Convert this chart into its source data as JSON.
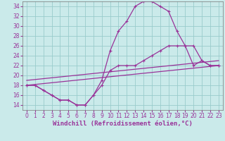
{
  "background_color": "#caeaea",
  "grid_color": "#99cccc",
  "line_color": "#993399",
  "xlim": [
    -0.5,
    23.5
  ],
  "ylim": [
    13,
    35
  ],
  "xticks": [
    0,
    1,
    2,
    3,
    4,
    5,
    6,
    7,
    8,
    9,
    10,
    11,
    12,
    13,
    14,
    15,
    16,
    17,
    18,
    19,
    20,
    21,
    22,
    23
  ],
  "yticks": [
    14,
    16,
    18,
    20,
    22,
    24,
    26,
    28,
    30,
    32,
    34
  ],
  "xlabel": "Windchill (Refroidissement éolien,°C)",
  "series": [
    {
      "x": [
        0,
        1,
        2,
        3,
        4,
        5,
        6,
        7,
        8,
        9,
        10,
        11,
        12,
        13,
        14,
        15,
        16,
        17,
        18,
        19,
        20,
        21,
        22,
        23
      ],
      "y": [
        18,
        18,
        17,
        16,
        15,
        15,
        14,
        14,
        16,
        19,
        25,
        29,
        31,
        34,
        35,
        35,
        34,
        33,
        29,
        26,
        22,
        23,
        22,
        22
      ]
    },
    {
      "x": [
        0,
        1,
        2,
        3,
        4,
        5,
        6,
        7,
        8,
        9,
        10,
        11,
        12,
        13,
        14,
        15,
        16,
        17,
        18,
        19,
        20,
        21,
        22,
        23
      ],
      "y": [
        18,
        18,
        17,
        16,
        15,
        15,
        14,
        14,
        16,
        18,
        21,
        22,
        22,
        22,
        23,
        24,
        25,
        26,
        26,
        26,
        26,
        23,
        22,
        22
      ]
    },
    {
      "x": [
        0,
        23
      ],
      "y": [
        18,
        22
      ]
    },
    {
      "x": [
        0,
        23
      ],
      "y": [
        19,
        23
      ]
    }
  ],
  "axis_fontsize": 6.5,
  "tick_fontsize": 5.5,
  "linewidth": 0.9,
  "markersize": 3.0,
  "markeredgewidth": 0.8
}
